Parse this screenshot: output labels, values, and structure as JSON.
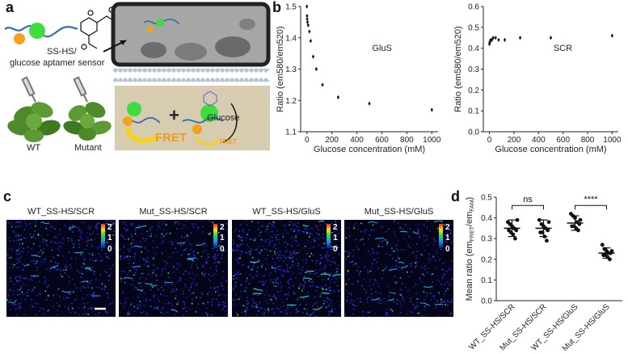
{
  "panels": {
    "a": "a",
    "b": "b",
    "c": "c",
    "d": "d"
  },
  "panel_a": {
    "sensor_label_line1": "SS-HS/",
    "sensor_label_line2": "glucose aptamer sensor",
    "wt_label": "WT",
    "mutant_label": "Mutant",
    "glucose_label": "Glucose",
    "fret_label": "FRET",
    "fret_label_small": "FRET",
    "plus_sign": "+",
    "colors": {
      "green": "#3fdc3f",
      "orange": "#f3a21b",
      "strand": "#2c6ea8",
      "cell_wall": "#f0ede8",
      "cell_bg": "#a6a6a6",
      "lower_bg": "#d8ccb0",
      "arrow_yellow": "#f5d31a",
      "fret_text": "#e8a019"
    }
  },
  "panel_c": {
    "titles": [
      "WT_SS-HS/SCR",
      "Mut_SS-HS/SCR",
      "WT_SS-HS/GluS",
      "Mut_SS-HS/GluS"
    ],
    "colorbar_ticks": [
      "2",
      "1",
      "0"
    ]
  },
  "chart_data": [
    {
      "type": "scatter",
      "panel": "b-left",
      "annotation": "GluS",
      "xlabel": "Glucose concentration (mM)",
      "ylabel": "Ratio (em580/em520)",
      "xlim": [
        -50,
        1050
      ],
      "ylim": [
        1.1,
        1.5
      ],
      "xticks": [
        0,
        200,
        400,
        600,
        800,
        1000
      ],
      "yticks": [
        1.1,
        1.2,
        1.3,
        1.4,
        1.5
      ],
      "points": [
        {
          "x": 0,
          "y": 1.5
        },
        {
          "x": 1,
          "y": 1.47
        },
        {
          "x": 2,
          "y": 1.46
        },
        {
          "x": 5,
          "y": 1.45
        },
        {
          "x": 10,
          "y": 1.44
        },
        {
          "x": 20,
          "y": 1.42
        },
        {
          "x": 30,
          "y": 1.39
        },
        {
          "x": 50,
          "y": 1.34
        },
        {
          "x": 75,
          "y": 1.3
        },
        {
          "x": 125,
          "y": 1.25
        },
        {
          "x": 250,
          "y": 1.21
        },
        {
          "x": 500,
          "y": 1.19
        },
        {
          "x": 1000,
          "y": 1.17
        }
      ]
    },
    {
      "type": "scatter",
      "panel": "b-right",
      "annotation": "SCR",
      "xlabel": "Glucose concentration (mM)",
      "ylabel": "Ratio (em580/em520)",
      "xlim": [
        -50,
        1050
      ],
      "ylim": [
        0.0,
        0.6
      ],
      "xticks": [
        0,
        200,
        400,
        600,
        800,
        1000
      ],
      "yticks": [
        0.0,
        0.1,
        0.2,
        0.3,
        0.4,
        0.5,
        0.6
      ],
      "points": [
        {
          "x": 0,
          "y": 0.42
        },
        {
          "x": 2,
          "y": 0.43
        },
        {
          "x": 5,
          "y": 0.43
        },
        {
          "x": 10,
          "y": 0.44
        },
        {
          "x": 20,
          "y": 0.44
        },
        {
          "x": 30,
          "y": 0.45
        },
        {
          "x": 50,
          "y": 0.45
        },
        {
          "x": 75,
          "y": 0.44
        },
        {
          "x": 125,
          "y": 0.44
        },
        {
          "x": 250,
          "y": 0.45
        },
        {
          "x": 500,
          "y": 0.45
        },
        {
          "x": 1000,
          "y": 0.46
        }
      ]
    },
    {
      "type": "scatter",
      "panel": "d",
      "ylabel_main": "Mean ratio (em",
      "ylabel_sub1": "FRET",
      "ylabel_mid": "/em",
      "ylabel_sub2": "FAM",
      "ylabel_end": ")",
      "ylim": [
        0.0,
        0.5
      ],
      "yticks": [
        0.0,
        0.1,
        0.2,
        0.3,
        0.4,
        0.5
      ],
      "categories": [
        "WT_SS-HS/SCR",
        "Mut_SS-HS/SCR",
        "WT_SS-HS/GluS",
        "Mut_SS-HS/GluS"
      ],
      "means": [
        0.35,
        0.35,
        0.375,
        0.23
      ],
      "sd": [
        0.04,
        0.04,
        0.035,
        0.025
      ],
      "points": [
        [
          0.38,
          0.37,
          0.36,
          0.35,
          0.34,
          0.34,
          0.33,
          0.32,
          0.3,
          0.39
        ],
        [
          0.39,
          0.37,
          0.36,
          0.35,
          0.34,
          0.33,
          0.33,
          0.31,
          0.29,
          0.38
        ],
        [
          0.42,
          0.41,
          0.4,
          0.38,
          0.37,
          0.36,
          0.36,
          0.35,
          0.34,
          0.39
        ],
        [
          0.27,
          0.25,
          0.24,
          0.23,
          0.23,
          0.22,
          0.22,
          0.21,
          0.2,
          0.24
        ]
      ],
      "significance": [
        {
          "between": [
            0,
            1
          ],
          "label": "ns"
        },
        {
          "between": [
            2,
            3
          ],
          "label": "****"
        }
      ]
    }
  ]
}
